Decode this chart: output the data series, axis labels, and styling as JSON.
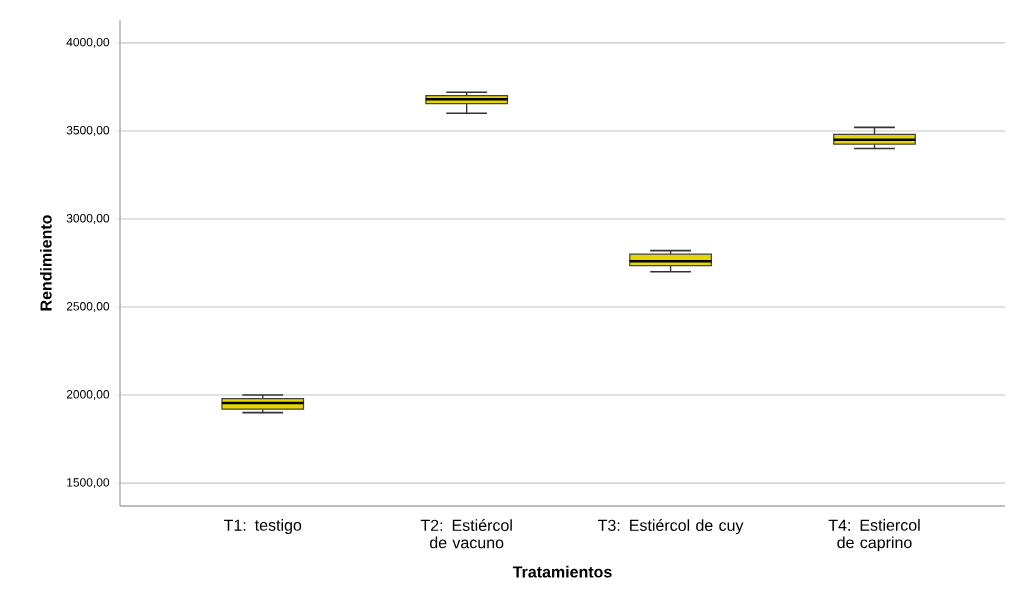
{
  "chart_data": {
    "type": "box",
    "xlabel": "Tratamientos",
    "ylabel": "Rendimiento",
    "categories": [
      "T1: testigo",
      "T2: Estiércol de vacuno",
      "T3: Estiércol de cuy",
      "T4: Estiercol de caprino"
    ],
    "boxes": [
      {
        "low": 1900,
        "q1": 1920,
        "median": 1955,
        "q3": 1980,
        "high": 2000
      },
      {
        "low": 3600,
        "q1": 3655,
        "median": 3680,
        "q3": 3700,
        "high": 3720
      },
      {
        "low": 2700,
        "q1": 2735,
        "median": 2760,
        "q3": 2800,
        "high": 2820
      },
      {
        "low": 3400,
        "q1": 3425,
        "median": 3450,
        "q3": 3480,
        "high": 3520
      }
    ],
    "color": "#e6d600",
    "ylim": [
      1370,
      4130
    ],
    "yticks": [
      {
        "value": 1500,
        "label": "1500,00"
      },
      {
        "value": 2000,
        "label": "2000,00"
      },
      {
        "value": 2500,
        "label": "2500,00"
      },
      {
        "value": 3000,
        "label": "3000,00"
      },
      {
        "value": 3500,
        "label": "3500,00"
      },
      {
        "value": 4000,
        "label": "4000,00"
      }
    ],
    "grid": "y"
  }
}
